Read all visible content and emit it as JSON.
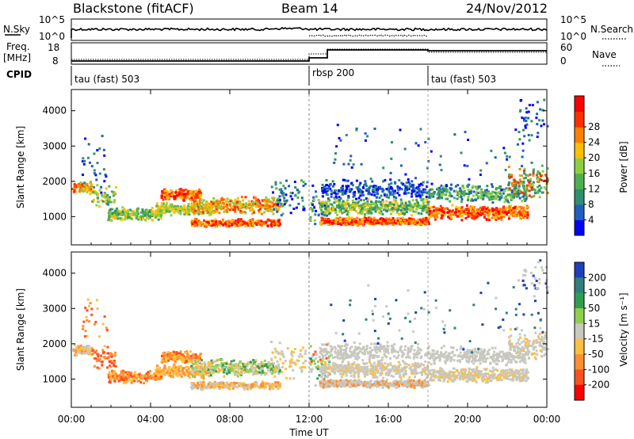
{
  "header": {
    "station": "Blackstone (fitACF)",
    "beam": "Beam 14",
    "date": "24/Nov/2012"
  },
  "top_panels": {
    "nsky_label": "N.Sky",
    "nsky_ticks": [
      "10^5",
      "10^0"
    ],
    "nsearch_label": "N.Search",
    "nsearch_ticks": [
      "10^5",
      "10^0"
    ],
    "freq_label": "Freq.",
    "freq_unit": "[MHz]",
    "freq_ticks": [
      "18",
      "8"
    ],
    "nave_label": "Nave",
    "nave_ticks": [
      "60",
      "0"
    ],
    "cpid_label": "CPID",
    "cpid_segments": [
      {
        "label": "tau (fast) 503",
        "start_h": 0,
        "end_h": 12
      },
      {
        "label": "rbsp 200",
        "start_h": 12,
        "end_h": 18
      },
      {
        "label": "tau (fast) 503",
        "start_h": 18,
        "end_h": 24
      }
    ]
  },
  "chart_data": [
    {
      "type": "heatmap",
      "quantity": "power",
      "ylabel": "Slant Range [km]",
      "xlim_hours": [
        0,
        24
      ],
      "ylim_km": [
        200,
        4600
      ],
      "yticks": [
        "1000",
        "2000",
        "3000",
        "4000"
      ],
      "colorbar_label": "Power [dB]",
      "colorbar_ticks": [
        "4",
        "8",
        "12",
        "16",
        "20",
        "24",
        "28"
      ],
      "colorbar_colors": [
        "#0000ff",
        "#1f5fbf",
        "#2f8f6f",
        "#4faf4f",
        "#8fcf3f",
        "#ffbf00",
        "#ff7f00",
        "#ff2f00",
        "#ff0000"
      ]
    },
    {
      "type": "heatmap",
      "quantity": "velocity",
      "ylabel": "Slant Range [km]",
      "xlabel": "Time UT",
      "xlim_hours": [
        0,
        24
      ],
      "ylim_km": [
        200,
        4600
      ],
      "yticks": [
        "1000",
        "2000",
        "3000",
        "4000"
      ],
      "xticks": [
        "00:00",
        "04:00",
        "08:00",
        "12:00",
        "16:00",
        "20:00",
        "00:00"
      ],
      "colorbar_label": "Velocity [m s⁻¹]",
      "colorbar_ticks": [
        "200",
        "100",
        "50",
        "15",
        "-15",
        "-50",
        "-100",
        "-200"
      ],
      "colorbar_colors": [
        "#1f3fbf",
        "#2f7f7f",
        "#2f9f4f",
        "#8fcf4f",
        "#c8c8c0",
        "#ffbf3f",
        "#ff8f2f",
        "#ff4f1f",
        "#ff0000"
      ]
    }
  ]
}
